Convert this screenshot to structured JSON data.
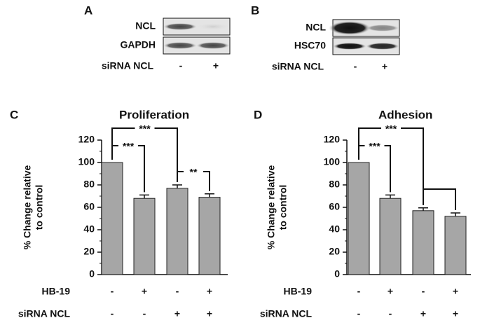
{
  "blots": [
    {
      "letter": "A",
      "rows": [
        "NCL",
        "GAPDH"
      ],
      "condition_label": "siRNA NCL",
      "conditions": [
        "-",
        "+"
      ]
    },
    {
      "letter": "B",
      "rows": [
        "NCL",
        "HSC70"
      ],
      "condition_label": "siRNA NCL",
      "conditions": [
        "-",
        "+"
      ]
    }
  ],
  "chart_data": [
    {
      "type": "bar",
      "letter": "C",
      "title": "Proliferation",
      "ylabel": [
        "% Change relative",
        "to control"
      ],
      "factors": [
        {
          "name": "HB-19",
          "levels": [
            "-",
            "+",
            "-",
            "+"
          ]
        },
        {
          "name": "siRNA NCL",
          "levels": [
            "-",
            "-",
            "+",
            "+"
          ]
        }
      ],
      "values": [
        100,
        68,
        77,
        69
      ],
      "errors": [
        0,
        3,
        3,
        3
      ],
      "color": "#a6a6a6",
      "ylim": [
        0,
        120
      ],
      "yticks": [
        0,
        20,
        40,
        60,
        80,
        100,
        120
      ],
      "significance": [
        {
          "from": 0,
          "to": 1,
          "label": "***"
        },
        {
          "from": 0,
          "to": 2,
          "label": "***"
        },
        {
          "from": 2,
          "to": 3,
          "label": "**"
        }
      ]
    },
    {
      "type": "bar",
      "letter": "D",
      "title": "Adhesion",
      "ylabel": [
        "% Change relative",
        "to control"
      ],
      "factors": [
        {
          "name": "HB-19",
          "levels": [
            "-",
            "+",
            "-",
            "+"
          ]
        },
        {
          "name": "siRNA NCL",
          "levels": [
            "-",
            "-",
            "+",
            "+"
          ]
        }
      ],
      "values": [
        100,
        68,
        57,
        52
      ],
      "errors": [
        0,
        3,
        2.5,
        3
      ],
      "color": "#a6a6a6",
      "ylim": [
        0,
        120
      ],
      "yticks": [
        0,
        20,
        40,
        60,
        80,
        100,
        120
      ],
      "significance": [
        {
          "from": 0,
          "to": 1,
          "label": "***"
        },
        {
          "from": 0,
          "to": 2,
          "label": "***"
        },
        {
          "from": 2,
          "to": 3
        }
      ]
    }
  ]
}
